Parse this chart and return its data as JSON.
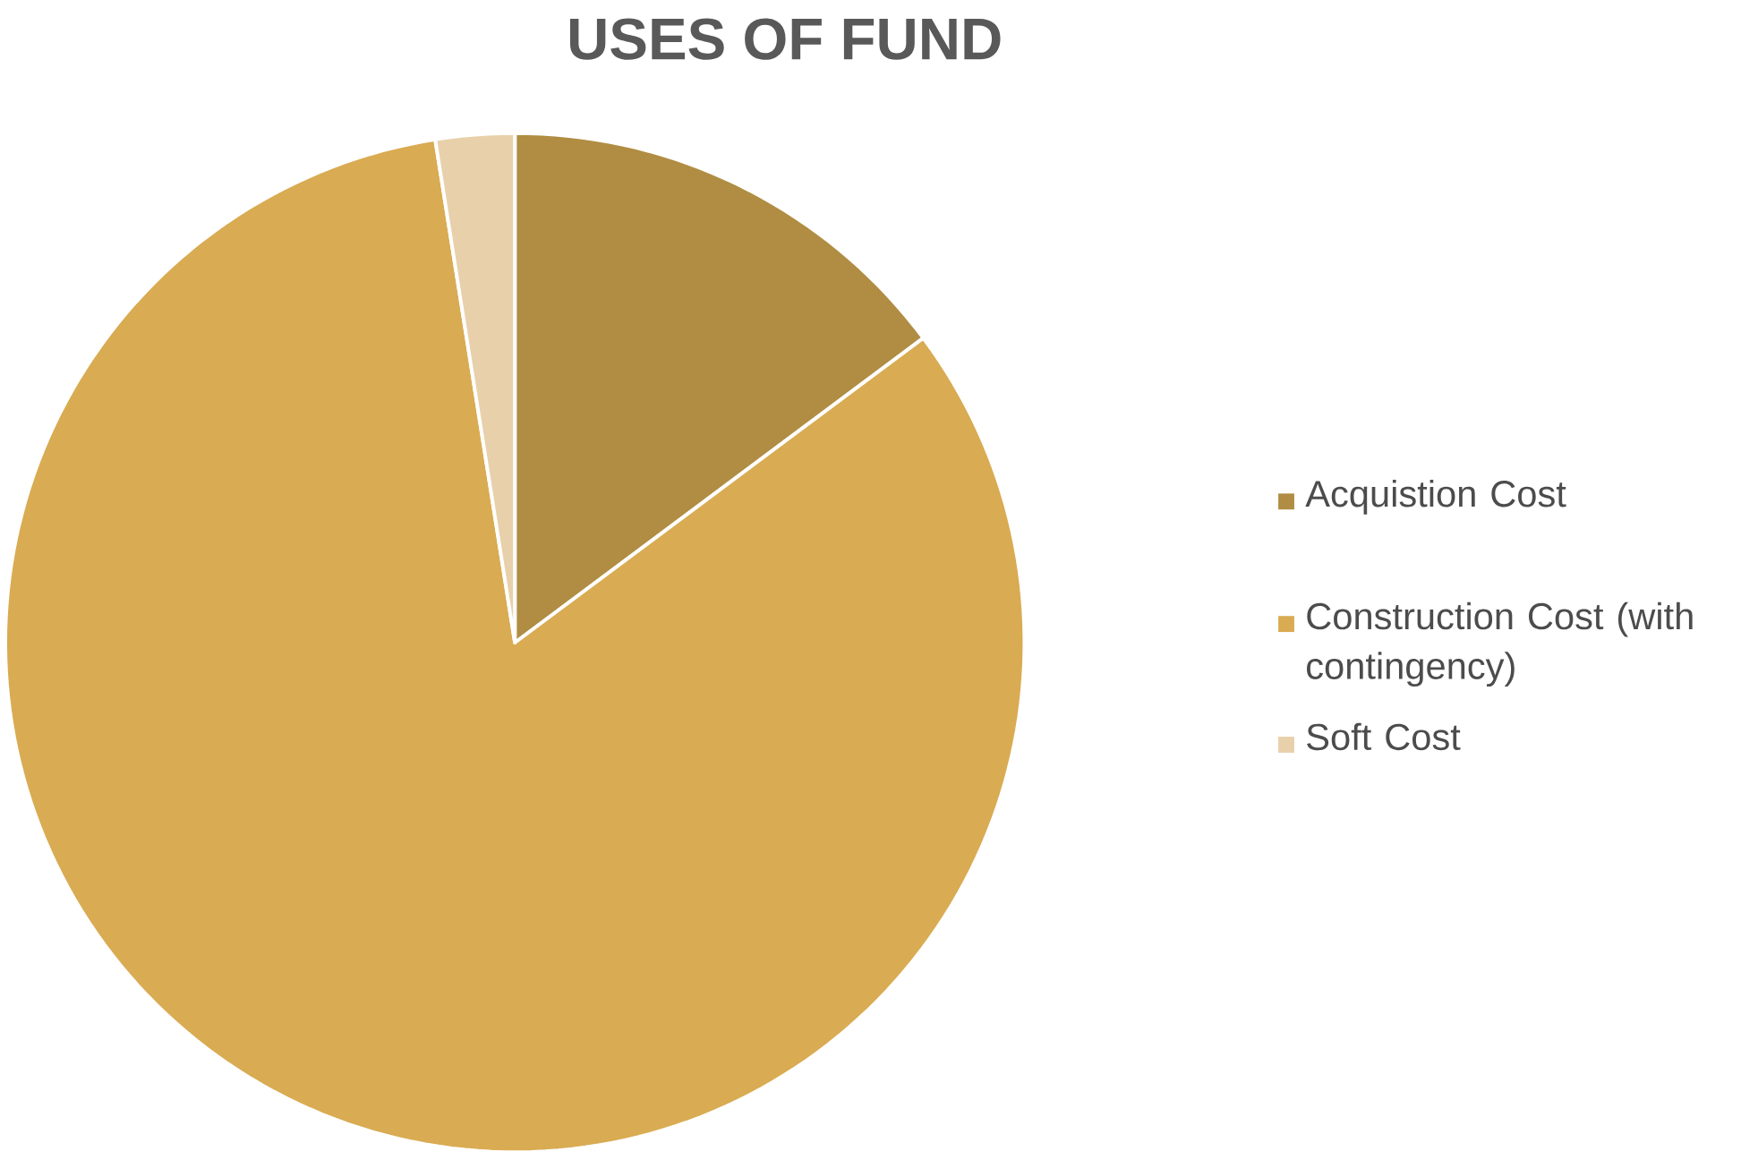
{
  "chart_data": {
    "type": "pie",
    "title": "USES OF FUND",
    "categories": [
      "Acquistion Cost",
      "Construction Cost (with contingency)",
      "Soft Cost"
    ],
    "values": [
      14.8,
      82.7,
      2.5
    ],
    "colors": [
      "#b08d43",
      "#d9ab52",
      "#e8d0ab"
    ],
    "legend": "right"
  }
}
